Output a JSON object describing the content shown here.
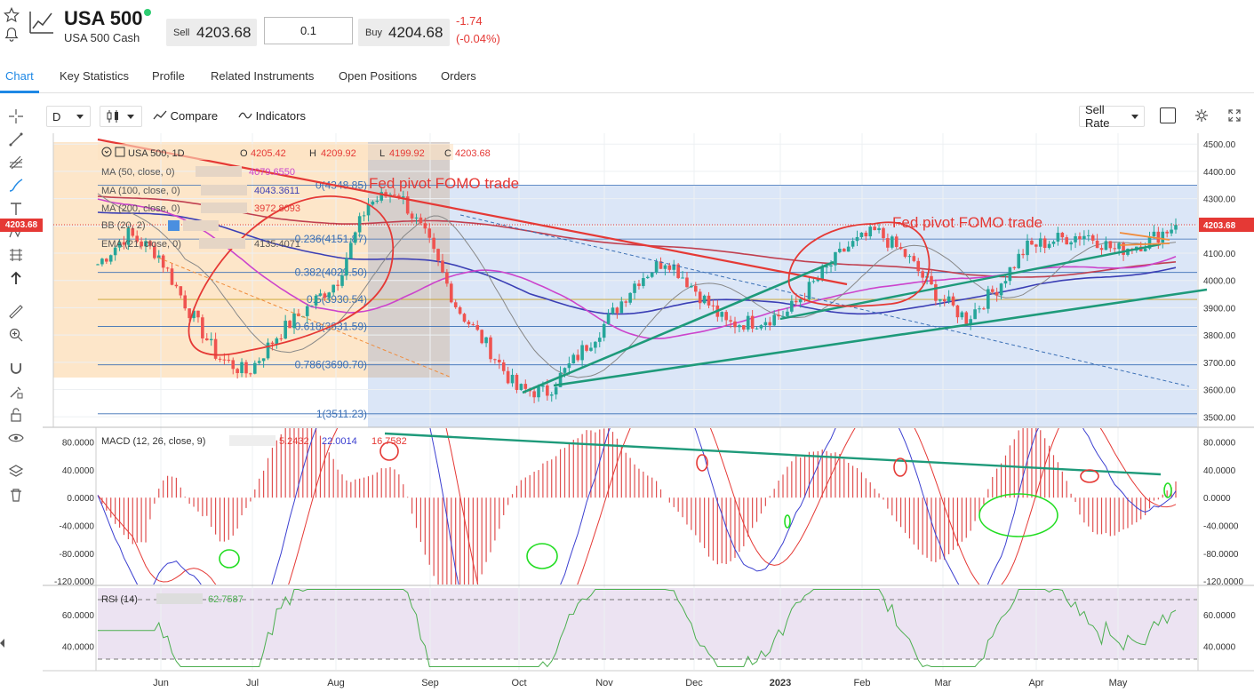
{
  "header": {
    "symbol": "USA 500",
    "subtitle": "USA 500 Cash",
    "sell_label": "Sell",
    "sell_price": "4203.68",
    "quantity": "0.1",
    "buy_label": "Buy",
    "buy_price": "4204.68",
    "change": "-1.74",
    "change_pct": "(-0.04%)",
    "status_color": "#2ecc71"
  },
  "tabs": [
    "Chart",
    "Key Statistics",
    "Profile",
    "Related Instruments",
    "Open Positions",
    "Orders"
  ],
  "toolbar": {
    "interval": "D",
    "compare": "Compare",
    "indicators": "Indicators",
    "price_type": "Sell Rate"
  },
  "legend": {
    "title": "USA 500, 1D",
    "o_label": "O",
    "o_val": "4205.42",
    "h_label": "H",
    "h_val": "4209.92",
    "l_label": "L",
    "l_val": "4199.92",
    "c_label": "C",
    "c_val": "4203.68",
    "ma50": "MA (50, close, 0)",
    "ma50_val": "4079.6550",
    "ma100": "MA (100, close, 0)",
    "ma100_val": "4043.3611",
    "ma200": "MA (200, close, 0)",
    "ma200_val": "3972.8093",
    "bb": "BB (20, 2)",
    "ema": "EMA (21, close, 0)",
    "ema_val": "4135.4071"
  },
  "annotations": {
    "note1": "Fed pivot FOMO trade",
    "note2": "Fed pivot FOMO trade"
  },
  "fib_levels": [
    {
      "label": "0(4348.85)",
      "price": 4348.85
    },
    {
      "label": "0.236(4151.87)",
      "price": 4151.87
    },
    {
      "label": "0.382(4029.50)",
      "price": 4029.5
    },
    {
      "label": "0.5(3930.54)",
      "price": 3930.54
    },
    {
      "label": "0.618(3831.59)",
      "price": 3831.59
    },
    {
      "label": "0.786(3690.70)",
      "price": 3690.7
    },
    {
      "label": "1(3511.23)",
      "price": 3511.23
    }
  ],
  "price_axis": {
    "ticks": [
      "4500.00",
      "4400.00",
      "4300.00",
      "4200.00",
      "4100.00",
      "4000.00",
      "3900.00",
      "3800.00",
      "3700.00",
      "3600.00",
      "3500.00"
    ],
    "current_label": "4203.68",
    "range": [
      3465,
      4530
    ]
  },
  "macd": {
    "title": "MACD (12, 26, close, 9)",
    "val1": "5.2432",
    "val2": "22.0014",
    "val3": "16.7582",
    "ticks_left": [
      "80.0000",
      "40.0000",
      "0.0000",
      "-40.0000",
      "-80.0000",
      "-120.0000"
    ],
    "ticks_right": [
      "80.0000",
      "40.0000",
      "0.0000",
      "-40.0000",
      "-80.0000",
      "-120.0000"
    ],
    "range": [
      -125,
      100
    ]
  },
  "rsi": {
    "title": "RSI (14)",
    "value": "62.7587",
    "ticks": [
      "60.0000",
      "40.0000"
    ],
    "range": [
      25,
      78
    ]
  },
  "x_axis": [
    "Jun",
    "Jul",
    "Aug",
    "Sep",
    "Oct",
    "Nov",
    "Dec",
    "2023",
    "Feb",
    "Mar",
    "Apr",
    "May"
  ],
  "chart_data": {
    "type": "line",
    "instrument": "USA 500, 1D",
    "x_labels": [
      "Jun",
      "Jul",
      "Aug",
      "Sep",
      "Oct",
      "Nov",
      "Dec",
      "2023",
      "Feb",
      "Mar",
      "Apr",
      "May"
    ],
    "price_keypoints": [
      4060,
      4170,
      4100,
      3900,
      3720,
      3660,
      3800,
      3900,
      4000,
      4280,
      4330,
      4150,
      3900,
      3760,
      3600,
      3590,
      3720,
      3850,
      4000,
      4080,
      3960,
      3840,
      3850,
      3880,
      4000,
      4120,
      4180,
      4090,
      3950,
      3860,
      3970,
      4120,
      4150,
      4170,
      4110,
      4140,
      4205
    ],
    "ohlc_last": {
      "open": 4205.42,
      "high": 4209.92,
      "low": 4199.92,
      "close": 4203.68
    },
    "ylim": [
      3465,
      4530
    ],
    "colors": {
      "up": "#26a69a",
      "down": "#ef5350",
      "ma50": "#cc44cc",
      "ma100": "#3b3fb5",
      "ma200": "#c04050",
      "ema": "#888888"
    }
  },
  "colors": {
    "accent": "#1e88e5",
    "negative": "#e53935",
    "macd_line": "#3b3fd0",
    "signal_line": "#e53935",
    "annotation": "#e53935",
    "trend_green": "#1e9a7a"
  }
}
